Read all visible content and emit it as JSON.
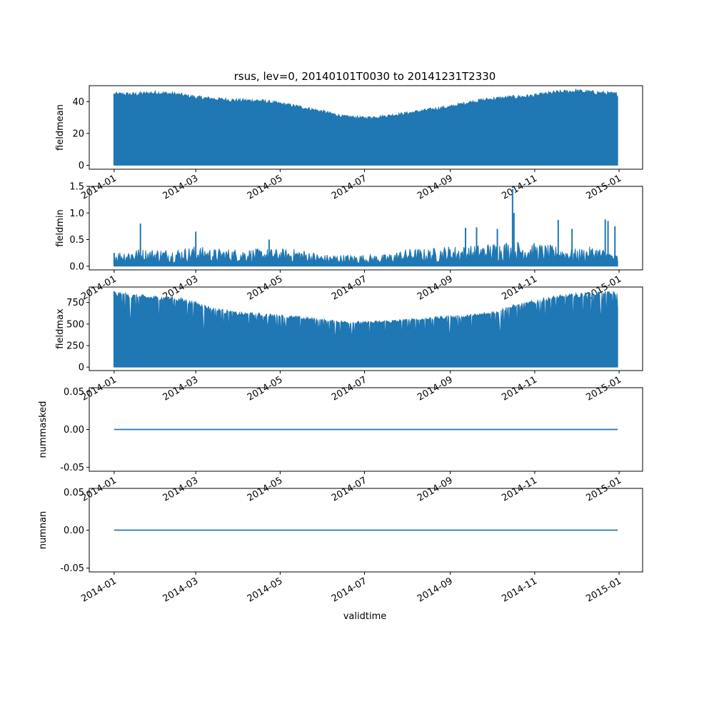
{
  "figure": {
    "title": "rsus, lev=0, 20140101T0030 to 20141231T2330",
    "xlabel": "validtime",
    "series_color": "#1f77b4"
  },
  "chart_data": [
    {
      "type": "area",
      "ylabel": "fieldmean",
      "xlim": [
        "2013-12-14",
        "2015-01-18"
      ],
      "ylim": [
        -2.5,
        50
      ],
      "yticks": [
        0,
        20,
        40
      ],
      "xticks": [
        "2014-01",
        "2014-03",
        "2014-05",
        "2014-07",
        "2014-09",
        "2014-11",
        "2015-01"
      ],
      "x_range": [
        "2014-01-01",
        "2014-12-31"
      ],
      "envelope": {
        "x": [
          "2014-01-01",
          "2014-01-15",
          "2014-02-01",
          "2014-02-15",
          "2014-03-01",
          "2014-03-15",
          "2014-04-01",
          "2014-04-15",
          "2014-05-01",
          "2014-05-15",
          "2014-06-01",
          "2014-06-15",
          "2014-07-01",
          "2014-07-15",
          "2014-08-01",
          "2014-08-15",
          "2014-09-01",
          "2014-09-15",
          "2014-10-01",
          "2014-10-15",
          "2014-11-01",
          "2014-11-15",
          "2014-12-01",
          "2014-12-15",
          "2014-12-31"
        ],
        "max": [
          45,
          45,
          46,
          45,
          43,
          42,
          41,
          41,
          39,
          37,
          34,
          31,
          30,
          31,
          33,
          35,
          37,
          40,
          42,
          43,
          44,
          46,
          47,
          46,
          45
        ],
        "min": [
          0,
          0,
          0,
          0,
          0,
          0,
          0,
          0,
          0,
          0,
          0,
          0,
          0,
          0,
          0,
          0,
          0,
          0,
          0,
          0,
          0,
          0,
          0,
          0,
          0
        ]
      },
      "line_style": false
    },
    {
      "type": "area",
      "ylabel": "fieldmin",
      "xlim": [
        "2013-12-14",
        "2015-01-18"
      ],
      "ylim": [
        -0.07,
        1.5
      ],
      "yticks": [
        0.0,
        0.5,
        1.0,
        1.5
      ],
      "xticks": [
        "2014-01",
        "2014-03",
        "2014-05",
        "2014-07",
        "2014-09",
        "2014-11",
        "2015-01"
      ],
      "x_range": [
        "2014-01-01",
        "2014-12-31"
      ],
      "envelope": {
        "x": [
          "2014-01-01",
          "2014-01-15",
          "2014-02-01",
          "2014-02-15",
          "2014-03-01",
          "2014-03-15",
          "2014-04-01",
          "2014-04-15",
          "2014-05-01",
          "2014-05-15",
          "2014-06-01",
          "2014-06-15",
          "2014-07-01",
          "2014-07-15",
          "2014-08-01",
          "2014-08-15",
          "2014-09-01",
          "2014-09-15",
          "2014-10-01",
          "2014-10-15",
          "2014-11-01",
          "2014-11-15",
          "2014-12-01",
          "2014-12-15",
          "2014-12-31"
        ],
        "max": [
          0.25,
          0.3,
          0.3,
          0.3,
          0.35,
          0.3,
          0.3,
          0.3,
          0.3,
          0.3,
          0.2,
          0.2,
          0.2,
          0.2,
          0.3,
          0.3,
          0.35,
          0.35,
          0.4,
          0.45,
          0.4,
          0.35,
          0.3,
          0.35,
          0.2
        ],
        "min": [
          0,
          0,
          0,
          0,
          0,
          0,
          0,
          0,
          0,
          0,
          0,
          0,
          0,
          0,
          0,
          0,
          0,
          0,
          0,
          0,
          0,
          0,
          0,
          0,
          0
        ]
      },
      "spikes": [
        {
          "x": "2014-01-20",
          "y": 0.8
        },
        {
          "x": "2014-03-01",
          "y": 0.65
        },
        {
          "x": "2014-04-23",
          "y": 0.5
        },
        {
          "x": "2014-09-12",
          "y": 0.72
        },
        {
          "x": "2014-09-20",
          "y": 0.73
        },
        {
          "x": "2014-10-05",
          "y": 0.7
        },
        {
          "x": "2014-10-16",
          "y": 1.45
        },
        {
          "x": "2014-10-17",
          "y": 1.0
        },
        {
          "x": "2014-11-18",
          "y": 0.87
        },
        {
          "x": "2014-11-28",
          "y": 0.7
        },
        {
          "x": "2014-12-22",
          "y": 0.88
        },
        {
          "x": "2014-12-24",
          "y": 0.85
        },
        {
          "x": "2014-12-29",
          "y": 0.75
        }
      ],
      "line_style": false
    },
    {
      "type": "area",
      "ylabel": "fieldmax",
      "xlim": [
        "2013-12-14",
        "2015-01-18"
      ],
      "ylim": [
        -40,
        930
      ],
      "yticks": [
        0,
        250,
        500,
        750
      ],
      "xticks": [
        "2014-01",
        "2014-03",
        "2014-05",
        "2014-07",
        "2014-09",
        "2014-11",
        "2015-01"
      ],
      "x_range": [
        "2014-01-01",
        "2014-12-31"
      ],
      "envelope": {
        "x": [
          "2014-01-01",
          "2014-01-15",
          "2014-02-01",
          "2014-02-15",
          "2014-03-01",
          "2014-03-15",
          "2014-04-01",
          "2014-04-15",
          "2014-05-01",
          "2014-05-15",
          "2014-06-01",
          "2014-06-15",
          "2014-07-01",
          "2014-07-15",
          "2014-08-01",
          "2014-08-15",
          "2014-09-01",
          "2014-09-15",
          "2014-10-01",
          "2014-10-15",
          "2014-11-01",
          "2014-11-15",
          "2014-12-01",
          "2014-12-15",
          "2014-12-31"
        ],
        "max": [
          880,
          850,
          830,
          820,
          760,
          690,
          640,
          630,
          610,
          590,
          560,
          540,
          530,
          545,
          560,
          580,
          600,
          610,
          650,
          720,
          780,
          830,
          860,
          880,
          880
        ],
        "min": [
          0,
          0,
          0,
          0,
          0,
          0,
          0,
          0,
          0,
          0,
          0,
          0,
          0,
          0,
          0,
          0,
          0,
          0,
          0,
          0,
          0,
          0,
          0,
          0,
          0
        ]
      },
      "line_style": false
    },
    {
      "type": "line",
      "ylabel": "nummasked",
      "xlim": [
        "2013-12-14",
        "2015-01-18"
      ],
      "ylim": [
        -0.055,
        0.055
      ],
      "yticks": [
        -0.05,
        0.0,
        0.05
      ],
      "xticks": [
        "2014-01",
        "2014-03",
        "2014-05",
        "2014-07",
        "2014-09",
        "2014-11",
        "2015-01"
      ],
      "x": [
        "2014-01-01",
        "2014-12-31"
      ],
      "y": [
        0,
        0
      ],
      "line_style": true
    },
    {
      "type": "line",
      "ylabel": "numnan",
      "xlim": [
        "2013-12-14",
        "2015-01-18"
      ],
      "ylim": [
        -0.055,
        0.055
      ],
      "yticks": [
        -0.05,
        0.0,
        0.05
      ],
      "xticks": [
        "2014-01",
        "2014-03",
        "2014-05",
        "2014-07",
        "2014-09",
        "2014-11",
        "2015-01"
      ],
      "x": [
        "2014-01-01",
        "2014-12-31"
      ],
      "y": [
        0,
        0
      ],
      "line_style": true
    }
  ]
}
